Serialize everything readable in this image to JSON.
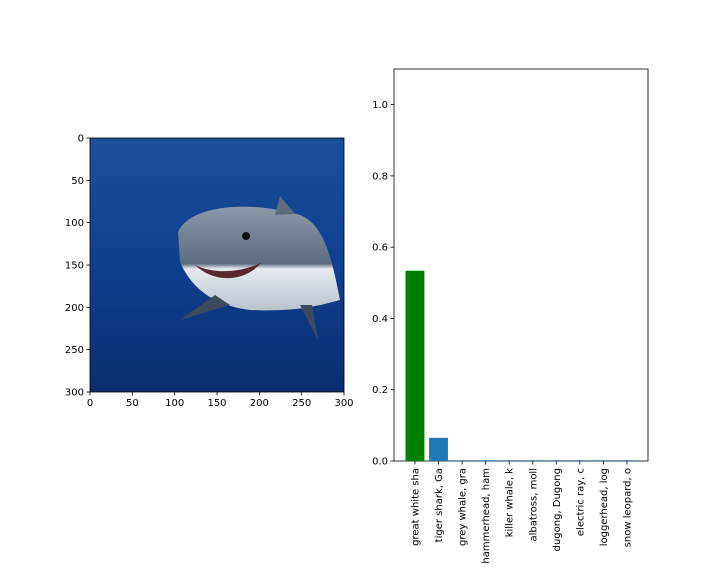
{
  "chart_data": [
    {
      "type": "image",
      "xlim": [
        0,
        300
      ],
      "ylim": [
        300,
        0
      ],
      "xticks": [
        0,
        50,
        100,
        150,
        200,
        250,
        300
      ],
      "yticks": [
        0,
        50,
        100,
        150,
        200,
        250,
        300
      ]
    },
    {
      "type": "bar",
      "categories": [
        "great white sha",
        "tiger shark, Ga",
        "grey whale, gra",
        "hammerhead, ham",
        "killer whale, k",
        "albatross, moll",
        "dugong, Dugong",
        "electric ray, c",
        "loggerhead, log",
        "snow leopard, o"
      ],
      "values": [
        0.534,
        0.065,
        0.002,
        0.002,
        0.002,
        0.002,
        0.002,
        0.002,
        0.002,
        0.002
      ],
      "colors": [
        "#008000",
        "#1f77b4",
        "#1f77b4",
        "#1f77b4",
        "#1f77b4",
        "#1f77b4",
        "#1f77b4",
        "#1f77b4",
        "#1f77b4",
        "#1f77b4"
      ],
      "ylim": [
        0,
        1.1
      ],
      "yticks": [
        {
          "value": 0,
          "label": "0.0"
        },
        0.2,
        0.4,
        0.6,
        0.8,
        {
          "value": 1,
          "label": "1.0"
        }
      ]
    }
  ]
}
